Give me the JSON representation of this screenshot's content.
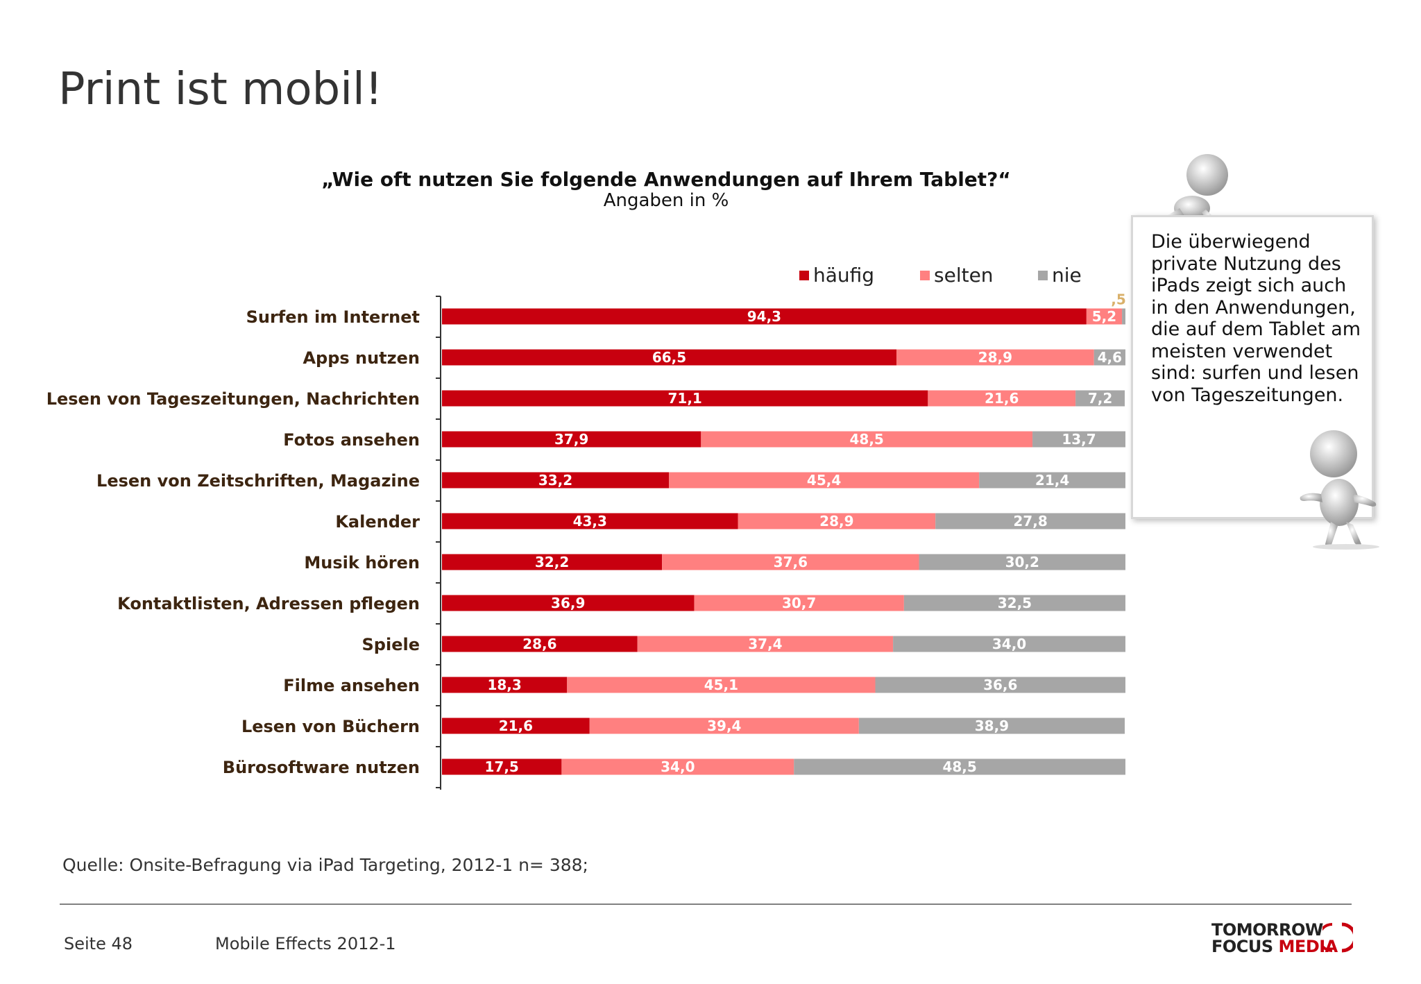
{
  "slide": {
    "title": "Print ist mobil!",
    "source": "Quelle: Onsite-Befragung via iPad Targeting, 2012-1 n= 388;",
    "page": "Seite 48",
    "footer_title": "Mobile Effects 2012-1",
    "logo_line1": "TOMORROW",
    "logo_line2_a": "FOCUS",
    "logo_line2_b": "MEDIA"
  },
  "note": {
    "text": "Die überwiegend private Nutzung des iPads zeigt sich auch in den Anwendungen, die auf dem Tablet am meisten verwendet sind: surfen und lesen von Tageszeitungen."
  },
  "colors": {
    "haeufig": "#c8000f",
    "selten": "#ff8080",
    "nie": "#a6a6a6",
    "small_label": "#d9b06a",
    "category_text": "#3d2510"
  },
  "chart_data": {
    "type": "bar",
    "orientation": "horizontal",
    "stacked": true,
    "title": "„Wie oft nutzen Sie folgende Anwendungen auf Ihrem Tablet?“",
    "subtitle": "Angaben in %",
    "xlim": [
      0,
      100
    ],
    "legend_position": "top-right",
    "categories": [
      "Surfen im Internet",
      "Apps nutzen",
      "Lesen von Tageszeitungen, Nachrichten",
      "Fotos ansehen",
      "Lesen von Zeitschriften, Magazine",
      "Kalender",
      "Musik hören",
      "Kontaktlisten, Adressen pflegen",
      "Spiele",
      "Filme ansehen",
      "Lesen von Büchern",
      "Bürosoftware nutzen"
    ],
    "series": [
      {
        "name": "häufig",
        "values": [
          94.3,
          66.5,
          71.1,
          37.9,
          33.2,
          43.3,
          32.2,
          36.9,
          28.6,
          18.3,
          21.6,
          17.5
        ],
        "labels": [
          "94,3",
          "66,5",
          "71,1",
          "37,9",
          "33,2",
          "43,3",
          "32,2",
          "36,9",
          "28,6",
          "18,3",
          "21,6",
          "17,5"
        ]
      },
      {
        "name": "selten",
        "values": [
          5.2,
          28.9,
          21.6,
          48.5,
          45.4,
          28.9,
          37.6,
          30.7,
          37.4,
          45.1,
          39.4,
          34.0
        ],
        "labels": [
          "5,2",
          "28,9",
          "21,6",
          "48,5",
          "45,4",
          "28,9",
          "37,6",
          "30,7",
          "37,4",
          "45,1",
          "39,4",
          "34,0"
        ]
      },
      {
        "name": "nie",
        "values": [
          0.5,
          4.6,
          7.2,
          13.7,
          21.4,
          27.8,
          30.2,
          32.5,
          34.0,
          36.6,
          38.9,
          48.5
        ],
        "labels": [
          ",5",
          "4,6",
          "7,2",
          "13,7",
          "21,4",
          "27,8",
          "30,2",
          "32,5",
          "34,0",
          "36,6",
          "38,9",
          "48,5"
        ]
      }
    ]
  }
}
